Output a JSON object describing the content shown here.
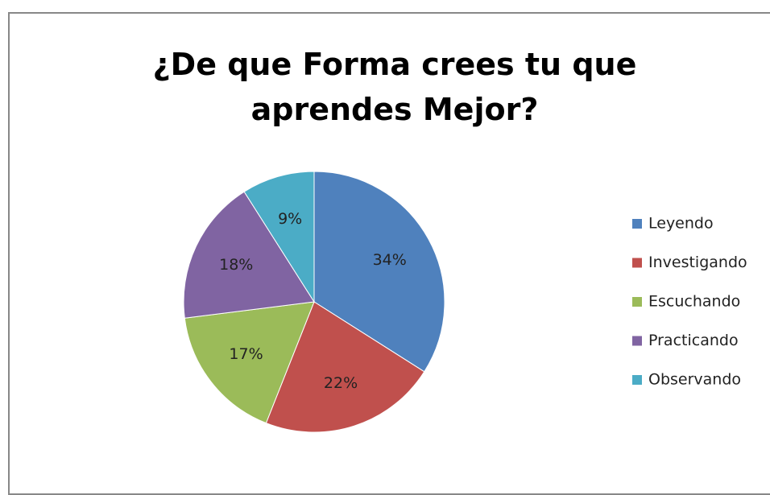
{
  "chart_data": {
    "type": "pie",
    "title": "¿De que Forma crees tu que aprendes Mejor?",
    "categories": [
      "Leyendo",
      "Investigando",
      "Escuchando",
      "Practicando",
      "Observando"
    ],
    "values": [
      34,
      22,
      17,
      18,
      9
    ],
    "value_labels": [
      "34%",
      "22%",
      "17%",
      "18%",
      "9%"
    ],
    "colors": [
      "#4f81bd",
      "#c0504d",
      "#9bbb59",
      "#8064a2",
      "#4bacc6"
    ],
    "legend": "right"
  }
}
